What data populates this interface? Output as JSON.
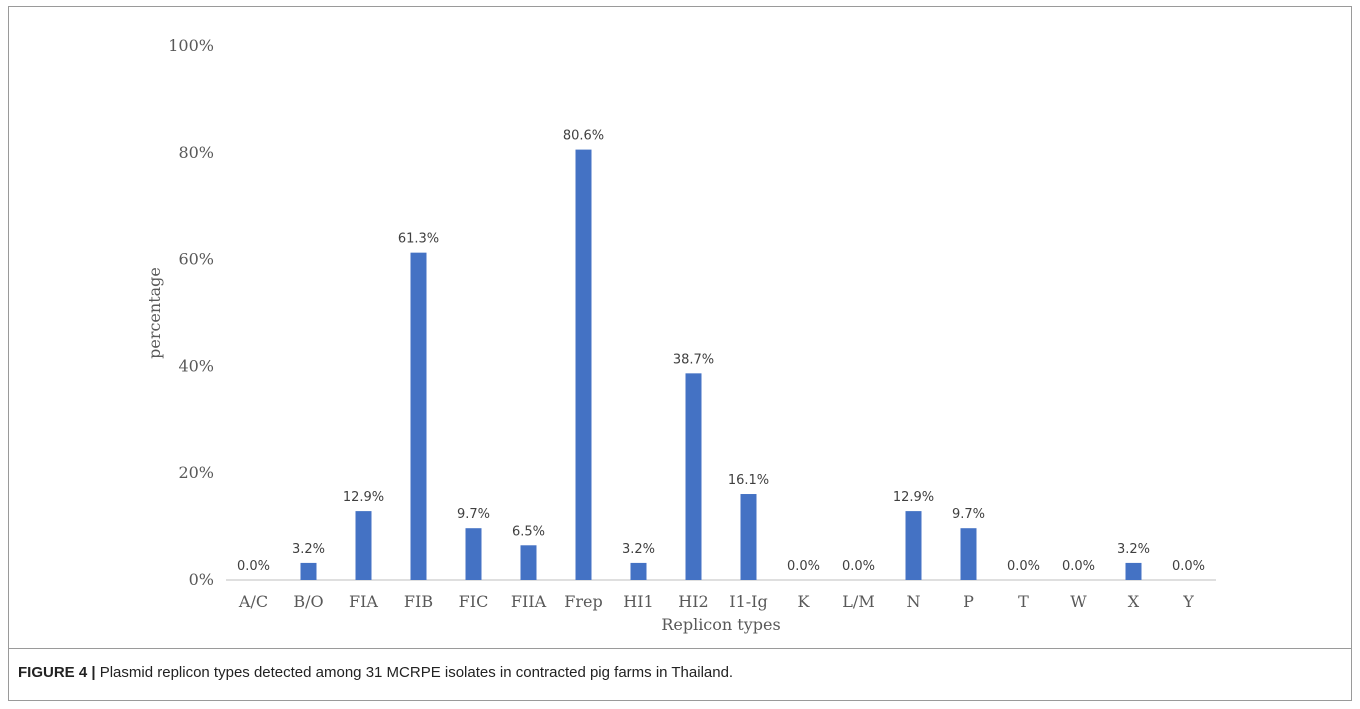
{
  "caption": {
    "label": "FIGURE 4 |",
    "text": " Plasmid replicon types detected among 31 MCRPE isolates in contracted pig farms in Thailand."
  },
  "chart_data": {
    "type": "bar",
    "categories": [
      "A/C",
      "B/O",
      "FIA",
      "FIB",
      "FIC",
      "FIIA",
      "Frep",
      "HI1",
      "HI2",
      "I1-Ig",
      "K",
      "L/M",
      "N",
      "P",
      "T",
      "W",
      "X",
      "Y"
    ],
    "values": [
      0.0,
      3.2,
      12.9,
      61.3,
      9.7,
      6.5,
      80.6,
      3.2,
      38.7,
      16.1,
      0.0,
      0.0,
      12.9,
      9.7,
      0.0,
      0.0,
      3.2,
      0.0
    ],
    "data_labels": [
      "0.0%",
      "3.2%",
      "12.9%",
      "61.3%",
      "9.7%",
      "6.5%",
      "80.6%",
      "3.2%",
      "38.7%",
      "16.1%",
      "0.0%",
      "0.0%",
      "12.9%",
      "9.7%",
      "0.0%",
      "0.0%",
      "3.2%",
      "0.0%"
    ],
    "ylim": [
      0,
      100
    ],
    "yticks": [
      0,
      20,
      40,
      60,
      80,
      100
    ],
    "ytick_labels": [
      "0%",
      "20%",
      "40%",
      "60%",
      "80%",
      "100%"
    ],
    "xlabel": "Replicon types",
    "ylabel": "percentage",
    "grid": false,
    "bar_color": "#4472C4",
    "axis_color": "#bfbfbf"
  }
}
